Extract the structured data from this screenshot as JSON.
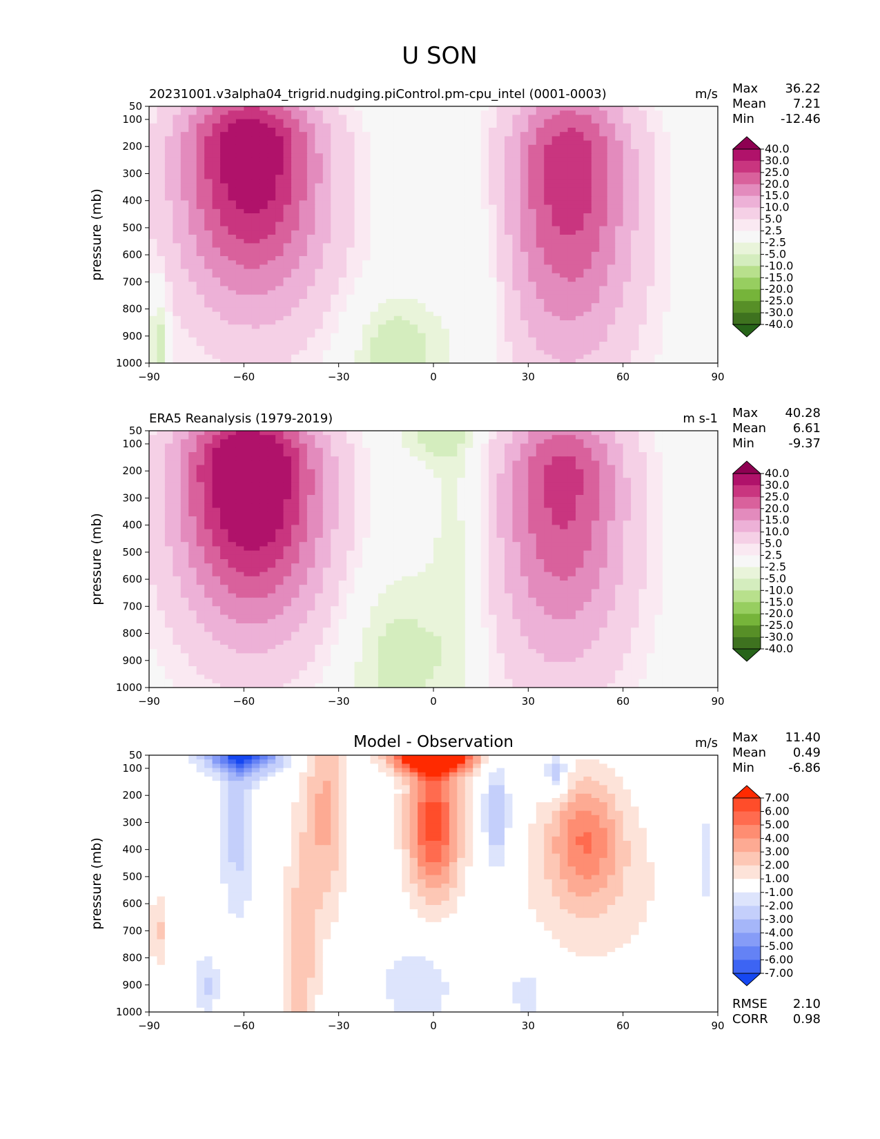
{
  "figure": {
    "title": "U SON"
  },
  "colormaps": {
    "fields": {
      "levels": [
        "40.0",
        "30.0",
        "25.0",
        "20.0",
        "15.0",
        "10.0",
        "5.0",
        "2.5",
        "-2.5",
        "-5.0",
        "-10.0",
        "-15.0",
        "-20.0",
        "-25.0",
        "-30.0",
        "-40.0"
      ],
      "colors": [
        "#8e0152",
        "#b0126a",
        "#c9357f",
        "#d9619c",
        "#e38bbd",
        "#edb1d7",
        "#f5d0e6",
        "#fae9f2",
        "#f7f7f7",
        "#e9f4da",
        "#d4edbe",
        "#b8e08c",
        "#97ce60",
        "#76b43a",
        "#578f27",
        "#3e721f",
        "#276419"
      ]
    },
    "diff": {
      "levels": [
        "7.00",
        "6.00",
        "5.00",
        "4.00",
        "3.00",
        "2.00",
        "1.00",
        "-1.00",
        "-2.00",
        "-3.00",
        "-4.00",
        "-5.00",
        "-6.00",
        "-7.00"
      ],
      "colors": [
        "#ff2a00",
        "#ff4d2a",
        "#ff6b4f",
        "#fe8d72",
        "#fdaa93",
        "#fdc7b5",
        "#fde3d9",
        "#ffffff",
        "#dde4fc",
        "#c4cffb",
        "#a5b6f9",
        "#869cf7",
        "#6482f5",
        "#3d64f3",
        "#1547f2"
      ]
    }
  },
  "chart_data": [
    {
      "type": "heatmap",
      "title": "20231001.v3alpha04_trigrid.nudging.piControl.pm-cpu_intel (0001-0003)",
      "units": "m/s",
      "ylabel": "pressure (mb)",
      "xlim": [
        -90,
        90
      ],
      "ylim": [
        1000,
        50
      ],
      "x_ticks": [
        "−90",
        "−60",
        "−30",
        "0",
        "30",
        "60",
        "90"
      ],
      "y_ticks": [
        "50",
        "100",
        "200",
        "300",
        "400",
        "500",
        "600",
        "700",
        "800",
        "900",
        "1000"
      ],
      "stats": [
        [
          "Max",
          "36.22"
        ],
        [
          "Mean",
          "7.21"
        ],
        [
          "Min",
          "-12.46"
        ]
      ],
      "colormap": "fields",
      "jets": [
        {
          "lat": -58,
          "p": 200,
          "peak": 36,
          "sx": 16,
          "sp": 170,
          "tilt": 0.06
        },
        {
          "lat": 43,
          "p": 250,
          "peak": 29,
          "sx": 14,
          "sp": 210,
          "tilt": 0.04
        }
      ],
      "easterlies": [
        {
          "lat": -12,
          "p": 950,
          "peak": -8,
          "sx": 10,
          "sp": 140
        },
        {
          "lat": 14,
          "p": 700,
          "peak": -5,
          "sx": 7,
          "sp": 300
        },
        {
          "lat": -87,
          "p": 900,
          "peak": -9,
          "sx": 2,
          "sp": 150
        }
      ]
    },
    {
      "type": "heatmap",
      "title": "ERA5 Reanalysis (1979-2019)",
      "units": "m s-1",
      "ylabel": "pressure (mb)",
      "xlim": [
        -90,
        90
      ],
      "ylim": [
        1000,
        50
      ],
      "x_ticks": [
        "−90",
        "−60",
        "−30",
        "0",
        "30",
        "60",
        "90"
      ],
      "y_ticks": [
        "50",
        "100",
        "200",
        "300",
        "400",
        "500",
        "600",
        "700",
        "800",
        "900",
        "1000"
      ],
      "stats": [
        [
          "Max",
          "40.28"
        ],
        [
          "Mean",
          "6.61"
        ],
        [
          "Min",
          "-9.37"
        ]
      ],
      "colormap": "fields",
      "jets": [
        {
          "lat": -58,
          "p": 180,
          "peak": 40,
          "sx": 16,
          "sp": 170,
          "tilt": 0.06
        },
        {
          "lat": 41,
          "p": 220,
          "peak": 27,
          "sx": 14,
          "sp": 200,
          "tilt": 0.04
        }
      ],
      "easterlies": [
        {
          "lat": -12,
          "p": 900,
          "peak": -7,
          "sx": 12,
          "sp": 250
        },
        {
          "lat": 8,
          "p": 500,
          "peak": -5,
          "sx": 6,
          "sp": 500
        },
        {
          "lat": 0,
          "p": 60,
          "peak": -6,
          "sx": 8,
          "sp": 80
        }
      ]
    },
    {
      "type": "heatmap",
      "title": "Model - Observation",
      "units": "m/s",
      "ylabel": "pressure (mb)",
      "xlim": [
        -90,
        90
      ],
      "ylim": [
        1000,
        50
      ],
      "x_ticks": [
        "−90",
        "−60",
        "−30",
        "0",
        "30",
        "60",
        "90"
      ],
      "y_ticks": [
        "50",
        "100",
        "200",
        "300",
        "400",
        "500",
        "600",
        "700",
        "800",
        "900",
        "1000"
      ],
      "stats": [
        [
          "Max",
          "11.40"
        ],
        [
          "Mean",
          "0.49"
        ],
        [
          "Min",
          "-6.86"
        ]
      ],
      "extra_stats": [
        [
          "RMSE",
          "2.10"
        ],
        [
          "CORR",
          "0.98"
        ]
      ],
      "colormap": "diff",
      "blobs": [
        {
          "lat": 0,
          "p": 60,
          "a": 10,
          "sx": 9,
          "sp": 40
        },
        {
          "lat": -60,
          "p": 50,
          "a": -6.5,
          "sx": 9,
          "sp": 50
        },
        {
          "lat": -62,
          "p": 300,
          "a": -2.6,
          "sx": 4,
          "sp": 260
        },
        {
          "lat": -34,
          "p": 250,
          "a": 3.2,
          "sx": 5,
          "sp": 280
        },
        {
          "lat": -42,
          "p": 800,
          "a": 2.6,
          "sx": 4,
          "sp": 330
        },
        {
          "lat": 0,
          "p": 300,
          "a": 6.5,
          "sx": 6,
          "sp": 200
        },
        {
          "lat": 48,
          "p": 350,
          "a": 4.0,
          "sx": 8,
          "sp": 160
        },
        {
          "lat": 20,
          "p": 280,
          "a": -3.3,
          "sx": 3,
          "sp": 150
        },
        {
          "lat": 39,
          "p": 120,
          "a": -3.5,
          "sx": 2.5,
          "sp": 60
        },
        {
          "lat": 86,
          "p": 450,
          "a": -1.5,
          "sx": 3,
          "sp": 220
        },
        {
          "lat": -5,
          "p": 900,
          "a": -1.8,
          "sx": 9,
          "sp": 120
        },
        {
          "lat": 30,
          "p": 920,
          "a": -1.6,
          "sx": 6,
          "sp": 100
        },
        {
          "lat": -87,
          "p": 700,
          "a": 2.3,
          "sx": 2,
          "sp": 100
        },
        {
          "lat": -72,
          "p": 900,
          "a": -2.2,
          "sx": 3,
          "sp": 80
        },
        {
          "lat": 50,
          "p": 550,
          "a": 1.5,
          "sx": 20,
          "sp": 250
        }
      ]
    }
  ]
}
